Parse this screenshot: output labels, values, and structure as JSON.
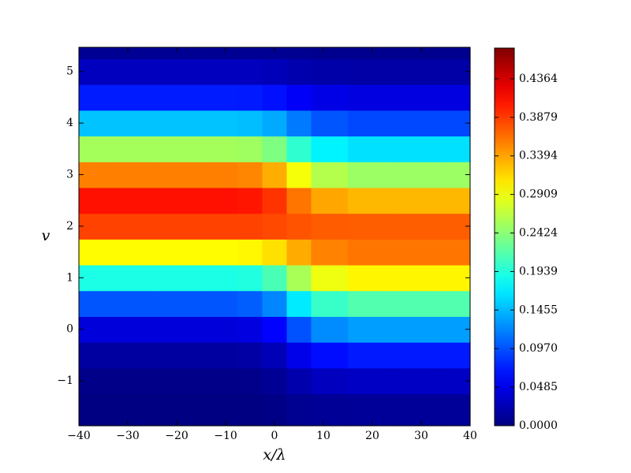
{
  "chart_data": {
    "type": "heatmap",
    "colormap": "jet",
    "x_label": "x/λ",
    "y_label": "v",
    "x": [
      -40,
      -30,
      -20,
      -10,
      -5,
      0,
      5,
      10,
      20,
      30,
      40
    ],
    "y": [
      -1.5,
      -1,
      -0.5,
      0,
      0.5,
      1,
      1.5,
      2,
      2.5,
      3,
      3.5,
      4,
      4.5,
      5,
      5.5
    ],
    "values": [
      [
        0.001,
        0.001,
        0.001,
        0.001,
        0.001,
        0.003,
        0.008,
        0.011,
        0.012,
        0.012,
        0.012
      ],
      [
        0.004,
        0.004,
        0.004,
        0.004,
        0.005,
        0.01,
        0.021,
        0.029,
        0.032,
        0.032,
        0.032
      ],
      [
        0.015,
        0.015,
        0.015,
        0.015,
        0.017,
        0.026,
        0.049,
        0.065,
        0.071,
        0.071,
        0.071
      ],
      [
        0.042,
        0.042,
        0.042,
        0.042,
        0.045,
        0.06,
        0.097,
        0.124,
        0.133,
        0.133,
        0.133
      ],
      [
        0.099,
        0.099,
        0.099,
        0.099,
        0.103,
        0.122,
        0.169,
        0.204,
        0.216,
        0.216,
        0.216
      ],
      [
        0.19,
        0.19,
        0.19,
        0.19,
        0.193,
        0.212,
        0.257,
        0.29,
        0.301,
        0.301,
        0.301
      ],
      [
        0.298,
        0.298,
        0.298,
        0.298,
        0.3,
        0.311,
        0.336,
        0.355,
        0.361,
        0.361,
        0.361
      ],
      [
        0.385,
        0.385,
        0.385,
        0.385,
        0.385,
        0.382,
        0.377,
        0.373,
        0.372,
        0.372,
        0.372
      ],
      [
        0.408,
        0.408,
        0.408,
        0.408,
        0.406,
        0.392,
        0.361,
        0.338,
        0.33,
        0.33,
        0.33
      ],
      [
        0.356,
        0.356,
        0.356,
        0.356,
        0.353,
        0.335,
        0.293,
        0.262,
        0.251,
        0.251,
        0.251
      ],
      [
        0.255,
        0.255,
        0.255,
        0.255,
        0.252,
        0.237,
        0.2,
        0.173,
        0.164,
        0.164,
        0.164
      ],
      [
        0.15,
        0.15,
        0.15,
        0.15,
        0.148,
        0.139,
        0.116,
        0.099,
        0.093,
        0.093,
        0.093
      ],
      [
        0.072,
        0.072,
        0.072,
        0.072,
        0.071,
        0.067,
        0.056,
        0.048,
        0.045,
        0.045,
        0.045
      ],
      [
        0.029,
        0.029,
        0.029,
        0.029,
        0.029,
        0.027,
        0.022,
        0.019,
        0.018,
        0.018,
        0.018
      ],
      [
        0.009,
        0.009,
        0.009,
        0.009,
        0.009,
        0.009,
        0.008,
        0.007,
        0.007,
        0.007,
        0.007
      ]
    ],
    "xlim": [
      -40,
      40
    ],
    "xticks": [
      {
        "value": -40,
        "label": "−40"
      },
      {
        "value": -30,
        "label": "−30"
      },
      {
        "value": -20,
        "label": "−20"
      },
      {
        "value": -10,
        "label": "−10"
      },
      0,
      10,
      20,
      30,
      40
    ],
    "ylim": [
      -1.87,
      5.47
    ],
    "yticks": [
      {
        "value": -1,
        "label": "−1"
      },
      0,
      1,
      2,
      3,
      4,
      5
    ],
    "zlim": [
      0,
      0.475
    ],
    "zticks": [
      {
        "value": 0,
        "label": "0.0000"
      },
      {
        "value": 0.0485,
        "label": "0.0485"
      },
      {
        "value": 0.097,
        "label": "0.0970"
      },
      {
        "value": 0.1455,
        "label": "0.1455"
      },
      {
        "value": 0.1939,
        "label": "0.1939"
      },
      {
        "value": 0.2424,
        "label": "0.2424"
      },
      {
        "value": 0.2909,
        "label": "0.2909"
      },
      {
        "value": 0.3394,
        "label": "0.3394"
      },
      {
        "value": 0.3879,
        "label": "0.3879"
      },
      {
        "value": 0.4364,
        "label": "0.4364"
      }
    ]
  }
}
